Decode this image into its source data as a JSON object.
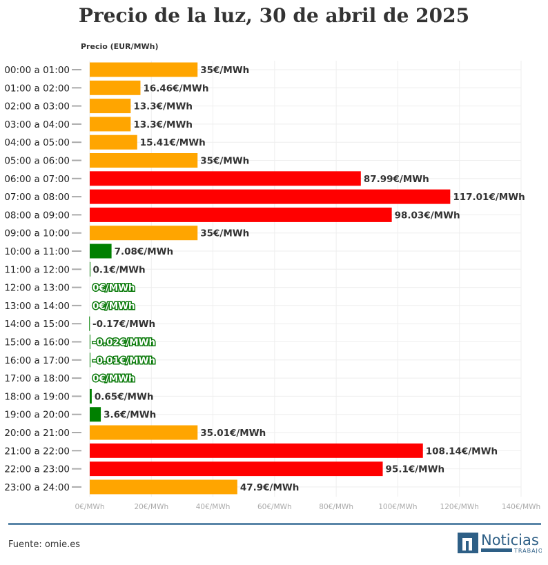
{
  "title": "Precio de la luz, 30 de abril de 2025",
  "source": "Fuente: omie.es",
  "logo": {
    "text": "Noticias",
    "sub": "TRABAJO"
  },
  "colors": {
    "high": "#FF0000",
    "medium": "#FFA500",
    "low": "#008000"
  },
  "chart_data": {
    "type": "bar",
    "orientation": "horizontal",
    "title": "Precio de la luz, 30 de abril de 2025",
    "ylabel": "Precio (EUR/MWh)",
    "xlim": [
      0,
      140
    ],
    "xticks": [
      0,
      20,
      40,
      60,
      80,
      100,
      120,
      140
    ],
    "xtick_labels": [
      "0€/MWh",
      "20€/MWh",
      "40€/MWh",
      "60€/MWh",
      "80€/MWh",
      "100€/MWh",
      "120€/MWh",
      "140€/MWh"
    ],
    "grid": true,
    "categories": [
      "00:00 a 01:00",
      "01:00 a 02:00",
      "02:00 a 03:00",
      "03:00 a 04:00",
      "04:00 a 05:00",
      "05:00 a 06:00",
      "06:00 a 07:00",
      "07:00 a 08:00",
      "08:00 a 09:00",
      "09:00 a 10:00",
      "10:00 a 11:00",
      "11:00 a 12:00",
      "12:00 a 13:00",
      "13:00 a 14:00",
      "14:00 a 15:00",
      "15:00 a 16:00",
      "16:00 a 17:00",
      "17:00 a 18:00",
      "18:00 a 19:00",
      "19:00 a 20:00",
      "20:00 a 21:00",
      "21:00 a 22:00",
      "22:00 a 23:00",
      "23:00 a 24:00"
    ],
    "values": [
      35,
      16.46,
      13.3,
      13.3,
      15.41,
      35,
      87.99,
      117.01,
      98.03,
      35,
      7.08,
      0.1,
      0,
      0,
      -0.17,
      -0.02,
      -0.01,
      0,
      0.65,
      3.6,
      35.01,
      108.14,
      95.1,
      47.9
    ],
    "levels": [
      "medium",
      "medium",
      "medium",
      "medium",
      "medium",
      "medium",
      "high",
      "high",
      "high",
      "medium",
      "low",
      "low",
      "low",
      "low",
      "low",
      "low",
      "low",
      "low",
      "low",
      "low",
      "medium",
      "high",
      "high",
      "medium"
    ],
    "labels": [
      "35€/MWh",
      "16.46€/MWh",
      "13.3€/MWh",
      "13.3€/MWh",
      "15.41€/MWh",
      "35€/MWh",
      "87.99€/MWh",
      "117.01€/MWh",
      "98.03€/MWh",
      "35€/MWh",
      "7.08€/MWh",
      "0.1€/MWh",
      "0€/MWh",
      "0€/MWh",
      "-0.17€/MWh",
      "-0.02€/MWh",
      "-0.01€/MWh",
      "0€/MWh",
      "0.65€/MWh",
      "3.6€/MWh",
      "35.01€/MWh",
      "108.14€/MWh",
      "95.1€/MWh",
      "47.9€/MWh"
    ]
  }
}
